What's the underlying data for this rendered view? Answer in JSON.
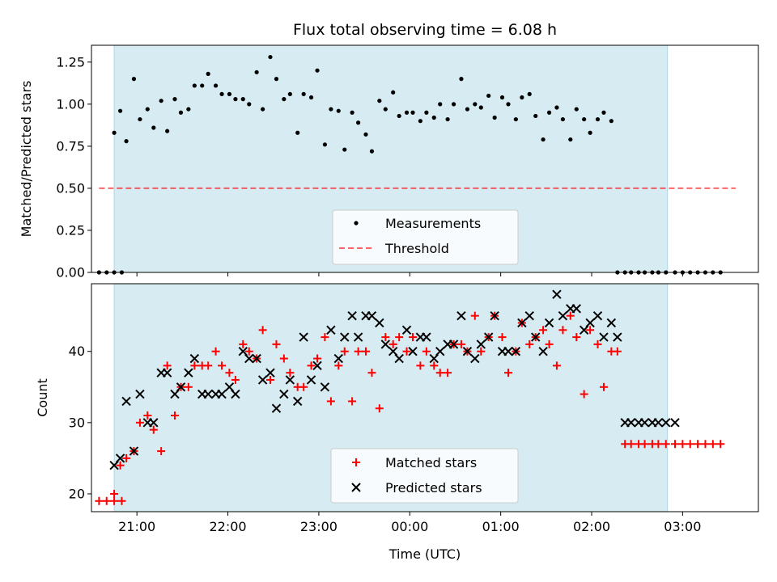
{
  "chart_data": [
    {
      "type": "scatter",
      "title": "Flux total observing time = 6.08 h",
      "ylabel": "Matched/Predicted stars",
      "xlabel": "",
      "xlim": [
        "20:30",
        "03:50"
      ],
      "ylim": [
        0,
        1.35
      ],
      "yticks": [
        0.0,
        0.25,
        0.5,
        0.75,
        1.0,
        1.25
      ],
      "ytick_labels": [
        "0.00",
        "0.25",
        "0.50",
        "0.75",
        "1.00",
        "1.25"
      ],
      "shaded_region": [
        "20:45",
        "02:50"
      ],
      "colors": {
        "shade": "#add8e6",
        "measurements": "#000000",
        "threshold": "#ff0000"
      },
      "legend": {
        "position": "bottom-center",
        "entries": [
          "Measurements",
          "Threshold"
        ]
      },
      "threshold": {
        "name": "Threshold",
        "value": 0.5,
        "x_range": [
          "20:35",
          "03:35"
        ]
      },
      "series": [
        {
          "name": "Measurements",
          "x": [
            "20:35",
            "20:40",
            "20:45",
            "20:50",
            "20:45",
            "20:49",
            "20:53",
            "20:58",
            "21:02",
            "21:07",
            "21:11",
            "21:16",
            "21:20",
            "21:25",
            "21:29",
            "21:34",
            "21:38",
            "21:43",
            "21:47",
            "21:52",
            "21:56",
            "22:01",
            "22:05",
            "22:10",
            "22:14",
            "22:19",
            "22:23",
            "22:28",
            "22:32",
            "22:37",
            "22:41",
            "22:46",
            "22:50",
            "22:55",
            "22:59",
            "23:04",
            "23:08",
            "23:13",
            "23:17",
            "23:22",
            "23:26",
            "23:31",
            "23:35",
            "23:40",
            "23:44",
            "23:49",
            "23:53",
            "23:58",
            "00:02",
            "00:07",
            "00:11",
            "00:16",
            "00:20",
            "00:25",
            "00:29",
            "00:34",
            "00:38",
            "00:43",
            "00:47",
            "00:52",
            "00:56",
            "01:01",
            "01:05",
            "01:10",
            "01:14",
            "01:19",
            "01:23",
            "01:28",
            "01:32",
            "01:37",
            "01:41",
            "01:46",
            "01:50",
            "01:55",
            "01:59",
            "02:04",
            "02:08",
            "02:13",
            "02:17",
            "02:22",
            "02:26",
            "02:31",
            "02:35",
            "02:40",
            "02:44",
            "02:49",
            "02:55",
            "03:00",
            "03:05",
            "03:10",
            "03:15",
            "03:20",
            "03:25"
          ],
          "y": [
            0,
            0,
            0,
            0,
            0.83,
            0.96,
            0.78,
            1.15,
            0.91,
            0.97,
            0.86,
            1.02,
            0.84,
            1.03,
            0.95,
            0.97,
            1.11,
            1.11,
            1.18,
            1.11,
            1.06,
            1.06,
            1.03,
            1.03,
            1.0,
            1.19,
            0.97,
            1.28,
            1.15,
            1.03,
            1.06,
            0.83,
            1.06,
            1.04,
            1.2,
            0.76,
            0.97,
            0.96,
            0.73,
            0.95,
            0.89,
            0.82,
            0.72,
            1.02,
            0.97,
            1.07,
            0.93,
            0.95,
            0.95,
            0.9,
            0.95,
            0.92,
            1.0,
            0.91,
            1.0,
            1.15,
            0.97,
            1.0,
            0.98,
            1.05,
            0.92,
            1.04,
            1.0,
            0.91,
            1.04,
            1.06,
            0.93,
            0.79,
            0.95,
            0.98,
            0.91,
            0.79,
            0.97,
            0.91,
            0.83,
            0.91,
            0.95,
            0.9,
            0,
            0,
            0,
            0,
            0,
            0,
            0,
            0,
            0,
            0,
            0,
            0,
            0,
            0,
            0
          ]
        }
      ]
    },
    {
      "type": "scatter",
      "title": "",
      "xlabel": "Time (UTC)",
      "ylabel": "Count",
      "xlim": [
        "20:30",
        "03:50"
      ],
      "ylim": [
        17.5,
        49.5
      ],
      "xticks": [
        "21:00",
        "22:00",
        "23:00",
        "00:00",
        "01:00",
        "02:00",
        "03:00"
      ],
      "yticks": [
        20,
        30,
        40
      ],
      "shaded_region": [
        "20:45",
        "02:50"
      ],
      "colors": {
        "shade": "#add8e6",
        "matched": "#ff0000",
        "predicted": "#000000"
      },
      "legend": {
        "position": "bottom-center",
        "entries": [
          "Matched stars",
          "Predicted stars"
        ]
      },
      "series": [
        {
          "name": "Matched stars",
          "marker": "plus",
          "x": [
            "20:35",
            "20:40",
            "20:45",
            "20:50",
            "20:45",
            "20:49",
            "20:53",
            "20:58",
            "21:02",
            "21:07",
            "21:11",
            "21:16",
            "21:20",
            "21:25",
            "21:29",
            "21:34",
            "21:38",
            "21:43",
            "21:47",
            "21:52",
            "21:56",
            "22:01",
            "22:05",
            "22:10",
            "22:14",
            "22:19",
            "22:23",
            "22:28",
            "22:32",
            "22:37",
            "22:41",
            "22:46",
            "22:50",
            "22:55",
            "22:59",
            "23:04",
            "23:08",
            "23:13",
            "23:17",
            "23:22",
            "23:26",
            "23:31",
            "23:35",
            "23:40",
            "23:44",
            "23:49",
            "23:53",
            "23:58",
            "00:02",
            "00:07",
            "00:11",
            "00:16",
            "00:20",
            "00:25",
            "00:29",
            "00:34",
            "00:38",
            "00:43",
            "00:47",
            "00:52",
            "00:56",
            "01:01",
            "01:05",
            "01:10",
            "01:14",
            "01:19",
            "01:23",
            "01:28",
            "01:32",
            "01:37",
            "01:41",
            "01:46",
            "01:50",
            "01:55",
            "01:59",
            "02:04",
            "02:08",
            "02:13",
            "02:17",
            "02:22",
            "02:26",
            "02:31",
            "02:35",
            "02:40",
            "02:44",
            "02:49",
            "02:55",
            "03:00",
            "03:05",
            "03:10",
            "03:15",
            "03:20",
            "03:25"
          ],
          "y": [
            19,
            19,
            19,
            19,
            20,
            24,
            25,
            26,
            30,
            31,
            29,
            26,
            38,
            31,
            35,
            35,
            38,
            38,
            38,
            40,
            38,
            37,
            36,
            41,
            40,
            39,
            43,
            36,
            41,
            39,
            37,
            35,
            35,
            38,
            39,
            42,
            33,
            38,
            40,
            33,
            40,
            40,
            37,
            32,
            42,
            41,
            42,
            40,
            42,
            38,
            40,
            38,
            37,
            37,
            41,
            41,
            40,
            45,
            40,
            42,
            45,
            42,
            37,
            40,
            44,
            41,
            42,
            43,
            41,
            38,
            43,
            45,
            42,
            34,
            43,
            41,
            35,
            40,
            40,
            27,
            27,
            27,
            27,
            27,
            27,
            27,
            27,
            27,
            27,
            27,
            27,
            27,
            27
          ],
          "note_x_offset": 0
        },
        {
          "name": "Predicted stars",
          "marker": "x",
          "x": [
            "20:45",
            "20:49",
            "20:53",
            "20:58",
            "21:02",
            "21:07",
            "21:11",
            "21:16",
            "21:20",
            "21:25",
            "21:29",
            "21:34",
            "21:38",
            "21:43",
            "21:47",
            "21:52",
            "21:56",
            "22:01",
            "22:05",
            "22:10",
            "22:14",
            "22:19",
            "22:23",
            "22:28",
            "22:32",
            "22:37",
            "22:41",
            "22:46",
            "22:50",
            "22:55",
            "22:59",
            "23:04",
            "23:08",
            "23:13",
            "23:17",
            "23:22",
            "23:26",
            "23:31",
            "23:35",
            "23:40",
            "23:44",
            "23:49",
            "23:53",
            "23:58",
            "00:02",
            "00:07",
            "00:11",
            "00:16",
            "00:20",
            "00:25",
            "00:29",
            "00:34",
            "00:38",
            "00:43",
            "00:47",
            "00:52",
            "00:56",
            "01:01",
            "01:05",
            "01:10",
            "01:14",
            "01:19",
            "01:23",
            "01:28",
            "01:32",
            "01:37",
            "01:41",
            "01:46",
            "01:50",
            "01:55",
            "01:59",
            "02:04",
            "02:08",
            "02:13",
            "02:17",
            "02:22",
            "02:26",
            "02:31",
            "02:35",
            "02:40",
            "02:44",
            "02:49",
            "02:55"
          ],
          "y": [
            24,
            25,
            33,
            26,
            34,
            30,
            30,
            37,
            37,
            34,
            35,
            37,
            39,
            34,
            34,
            34,
            34,
            35,
            34,
            40,
            39,
            39,
            36,
            37,
            32,
            34,
            36,
            33,
            42,
            36,
            38,
            35,
            43,
            39,
            42,
            45,
            42,
            45,
            45,
            44,
            41,
            40,
            39,
            43,
            40,
            42,
            42,
            39,
            40,
            41,
            41,
            45,
            40,
            39,
            41,
            42,
            45,
            40,
            40,
            40,
            44,
            45,
            42,
            40,
            44,
            48,
            45,
            46,
            46,
            43,
            44,
            45,
            42,
            44,
            42,
            30,
            30,
            30,
            30,
            30,
            30,
            30,
            30
          ]
        }
      ]
    }
  ]
}
